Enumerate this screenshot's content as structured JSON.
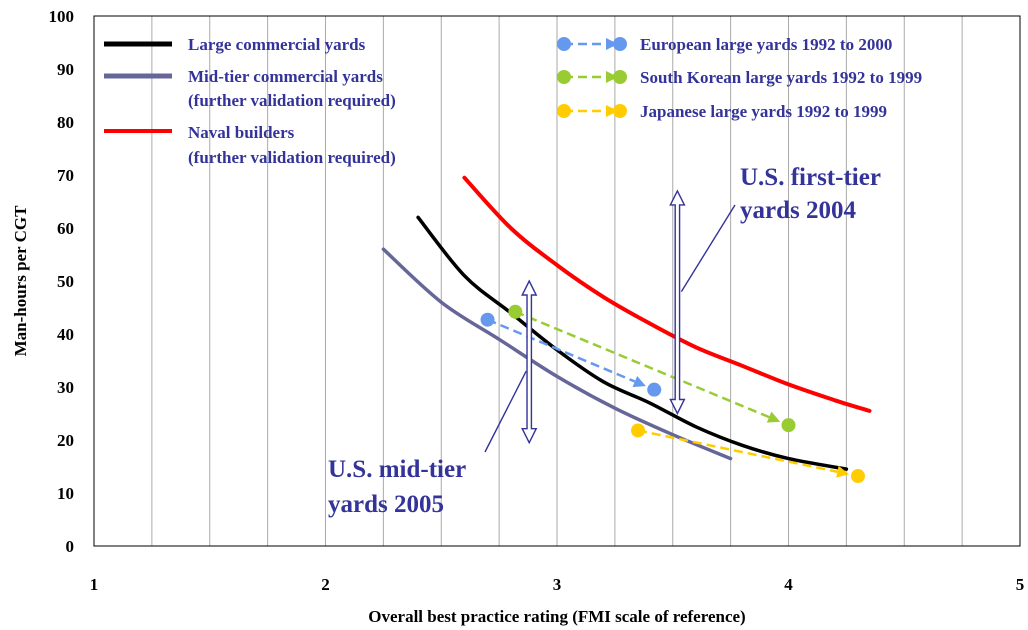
{
  "chart_data": {
    "type": "line",
    "xlabel": "Overall best practice rating (FMI scale of reference)",
    "ylabel": "Man-hours per CGT",
    "xlim": [
      1,
      5
    ],
    "ylim": [
      0,
      100
    ],
    "x_ticks": [
      "1",
      "2",
      "3",
      "4",
      "5"
    ],
    "y_ticks": [
      "0",
      "10",
      "20",
      "30",
      "40",
      "50",
      "60",
      "70",
      "80",
      "90",
      "100"
    ],
    "grid": "vertical",
    "legend_placement": "top",
    "series": [
      {
        "name": "Large commercial yards",
        "color": "#000000",
        "style": "solid",
        "points": [
          [
            2.4,
            62
          ],
          [
            2.6,
            51
          ],
          [
            2.8,
            44
          ],
          [
            3.0,
            37
          ],
          [
            3.2,
            31
          ],
          [
            3.4,
            27
          ],
          [
            3.6,
            22.5
          ],
          [
            3.8,
            19
          ],
          [
            4.0,
            16.5
          ],
          [
            4.25,
            14.5
          ]
        ]
      },
      {
        "name": "Mid-tier commercial yards",
        "name_note": "(further validation required)",
        "color": "#666699",
        "style": "solid",
        "points": [
          [
            2.25,
            56
          ],
          [
            2.5,
            46
          ],
          [
            2.75,
            39
          ],
          [
            3.0,
            32
          ],
          [
            3.25,
            26
          ],
          [
            3.5,
            21
          ],
          [
            3.75,
            16.5
          ]
        ]
      },
      {
        "name": "Naval builders",
        "name_note": "(further validation required)",
        "color": "#ff0000",
        "style": "solid",
        "points": [
          [
            2.6,
            69.5
          ],
          [
            2.8,
            60
          ],
          [
            3.0,
            53
          ],
          [
            3.2,
            47
          ],
          [
            3.4,
            42
          ],
          [
            3.6,
            37.5
          ],
          [
            3.8,
            34
          ],
          [
            4.0,
            30.5
          ],
          [
            4.2,
            27.5
          ],
          [
            4.35,
            25.5
          ]
        ]
      },
      {
        "name": "European large yards 1992 to 2000",
        "color": "#6699ee",
        "style": "dashed",
        "points": [
          [
            2.7,
            42.7
          ],
          [
            3.42,
            29.5
          ]
        ]
      },
      {
        "name": "South Korean large yards 1992 to 1999",
        "color": "#99cc33",
        "style": "dashed",
        "points": [
          [
            2.82,
            44.2
          ],
          [
            4.0,
            22.8
          ]
        ]
      },
      {
        "name": "Japanese large yards 1992 to 1999",
        "color": "#ffcc00",
        "style": "dashed",
        "points": [
          [
            3.35,
            21.8
          ],
          [
            4.3,
            13.2
          ]
        ]
      }
    ],
    "annotations": [
      {
        "lines": [
          "U.S. first-tier",
          "yards 2004"
        ],
        "arrow_x": 3.52,
        "arrow_y": [
          25,
          67
        ]
      },
      {
        "lines": [
          "U.S. mid-tier",
          "yards 2005"
        ],
        "arrow_x": 2.88,
        "arrow_y": [
          19.5,
          50
        ]
      }
    ]
  }
}
